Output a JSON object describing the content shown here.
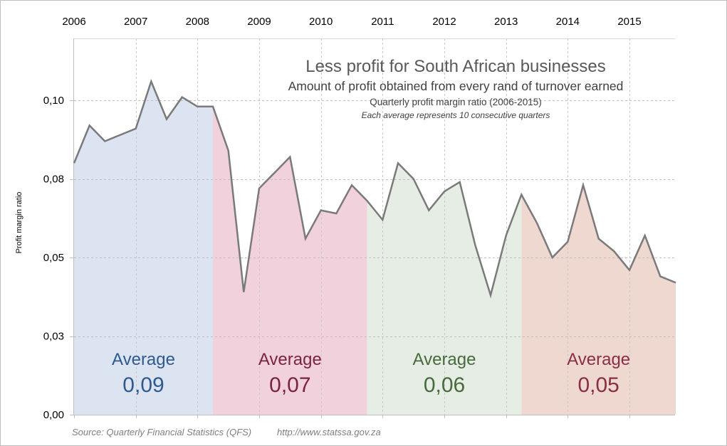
{
  "chart_data": {
    "type": "area",
    "title": "Less profit for South African businesses",
    "subtitle": "Amount of profit obtained from every rand of turnover earned",
    "subtitle2": "Quarterly profit margin ratio (2006-2015)",
    "note": "Each average represents 10 consecutive quarters",
    "xlabel": "",
    "ylabel": "Profit margin ratio",
    "x_tick_labels": [
      "2006",
      "2007",
      "2008",
      "2009",
      "2010",
      "2011",
      "2012",
      "2013",
      "2014",
      "2015"
    ],
    "x_axis_position": "top",
    "y_ticks": [
      {
        "value": 0.0,
        "label": "0,00"
      },
      {
        "value": 0.025,
        "label": "0,03"
      },
      {
        "value": 0.05,
        "label": "0,05"
      },
      {
        "value": 0.075,
        "label": "0,08"
      },
      {
        "value": 0.1,
        "label": "0,10"
      }
    ],
    "ylim": [
      0,
      0.12
    ],
    "grid": true,
    "quarters_per_year": 4,
    "series": [
      {
        "name": "Quarterly profit margin ratio",
        "color": "#7f7f7f",
        "values": [
          0.08,
          0.092,
          0.087,
          0.089,
          0.091,
          0.106,
          0.094,
          0.101,
          0.098,
          0.098,
          0.084,
          0.039,
          0.072,
          0.077,
          0.082,
          0.056,
          0.065,
          0.064,
          0.073,
          0.068,
          0.062,
          0.08,
          0.075,
          0.065,
          0.071,
          0.074,
          0.054,
          0.038,
          0.057,
          0.07,
          0.061,
          0.05,
          0.055,
          0.073,
          0.056,
          0.052,
          0.046,
          0.057,
          0.044,
          0.042
        ]
      }
    ],
    "periods": [
      {
        "start": 0,
        "end": 9,
        "label": "Average",
        "value_label": "0,09",
        "value": 0.09,
        "fill": "#dbe4f0",
        "text_color": "#2f5a8f"
      },
      {
        "start": 9,
        "end": 19,
        "label": "Average",
        "value_label": "0,07",
        "value": 0.07,
        "fill": "#f0d1dc",
        "text_color": "#7b2340"
      },
      {
        "start": 19,
        "end": 29,
        "label": "Average",
        "value_label": "0,06",
        "value": 0.06,
        "fill": "#e6ede4",
        "text_color": "#466b3c"
      },
      {
        "start": 29,
        "end": 39,
        "label": "Average",
        "value_label": "0,05",
        "value": 0.05,
        "fill": "#efd8cf",
        "text_color": "#8a2e48"
      }
    ],
    "source": "Source: Quarterly Financial Statistics (QFS)",
    "source_url": "http://www.statssa.gov.za"
  }
}
